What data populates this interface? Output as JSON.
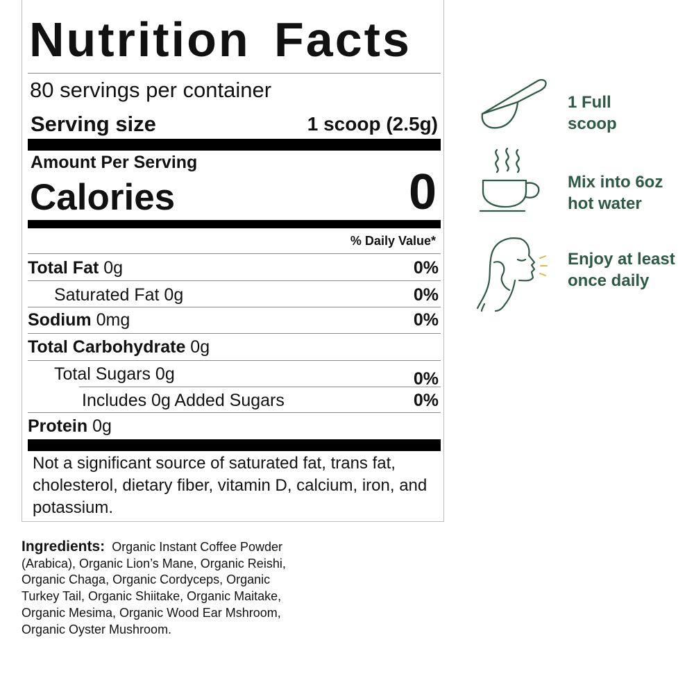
{
  "label": {
    "title": "Nutrition Facts",
    "servings": "80 servings per container",
    "serving_size_label": "Serving size",
    "serving_size_value": "1 scoop (2.5g)",
    "amount_per_serving": "Amount Per Serving",
    "calories_label": "Calories",
    "calories_value": "0",
    "daily_value_header": "% Daily Value*",
    "nutrients": [
      {
        "name": "Total Fat",
        "amount": " 0g",
        "dv": "0%"
      },
      {
        "name": "Saturated Fat 0g",
        "dv": "0%"
      },
      {
        "name": "Sodium",
        "amount": " 0mg",
        "dv": "0%"
      },
      {
        "name": "Total Carbohydrate",
        "amount": " 0g",
        "dv": ""
      },
      {
        "name": "Total Sugars 0g",
        "dv": "0%"
      },
      {
        "name": "Includes 0g Added Sugars",
        "dv": "0%"
      },
      {
        "name": "Protein",
        "amount": " 0g",
        "dv": ""
      }
    ],
    "footnote": "Not a significant source of saturated fat, trans fat, cholesterol, dietary fiber, vitamin D, calcium, iron, and potassium."
  },
  "ingredients": {
    "label": "Ingredients:",
    "text": "Organic Instant Coffee Powder (Arabica), Organic Lion’s Mane, Organic Reishi, Organic Chaga, Organic Cordyceps, Organic Turkey Tail, Organic Shiitake, Organic Maitake, Organic Mesima, Organic Wood Ear Mshroom, Organic Oyster Mushroom."
  },
  "steps": [
    {
      "icon": "scoop-icon",
      "line1": "1 Full",
      "line2": "scoop"
    },
    {
      "icon": "hot-cup-icon",
      "line1": "Mix into 6oz",
      "line2": "hot water"
    },
    {
      "icon": "person-face-icon",
      "line1": "Enjoy at least",
      "line2": "once daily"
    }
  ],
  "colors": {
    "step_green": "#2c5a45",
    "accent_yellow": "#e0b93c"
  }
}
